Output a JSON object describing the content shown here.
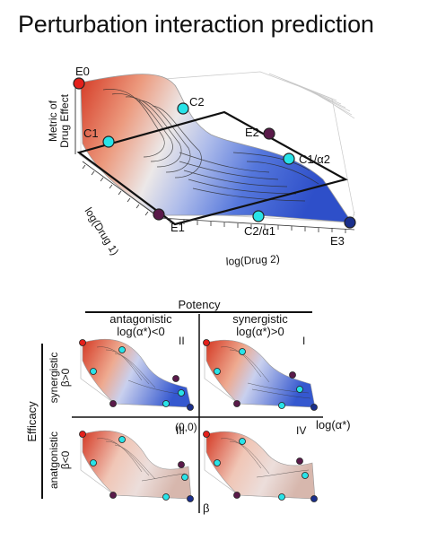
{
  "title": "Perturbation interaction prediction",
  "main_plot": {
    "z_label_line1": "Metric of",
    "z_label_line2": "Drug Effect",
    "x_label": "log(Drug 1)",
    "y_label": "log(Drug 2)",
    "points": {
      "E0": "E0",
      "E1": "E1",
      "E2": "E2",
      "E3": "E3",
      "C1": "C1",
      "C2": "C2",
      "C1_a2": "C1/α2",
      "C2_a1": "C2/α1"
    }
  },
  "quadrant": {
    "potency_label": "Potency",
    "antagonistic_top_line1": "antagonistic",
    "antagonistic_top_line2": "log(α*)<0",
    "synergistic_top_line1": "synergistic",
    "synergistic_top_line2": "log(α*)>0",
    "efficacy_label": "Efficacy",
    "synergistic_left_line1": "synergistic",
    "synergistic_left_line2": "β>0",
    "antagonistic_left_line1": "anatgonistic",
    "antagonistic_left_line2": "β<0",
    "origin_label": "(0,0)",
    "x_axis_label": "log(α*)",
    "y_axis_label": "β",
    "quadrants": [
      "II",
      "I",
      "III",
      "IV"
    ]
  },
  "colors": {
    "high_effect": "#d8472e",
    "low_effect": "#3a5fcd",
    "mid_effect": "#eae6e6",
    "point_cyan": "#28e3e8",
    "point_purple": "#5a1a4a",
    "point_red": "#e3201b",
    "point_navy": "#1a2f8c"
  }
}
